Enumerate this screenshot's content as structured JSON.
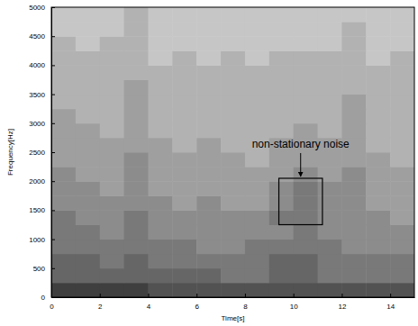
{
  "chart_data": {
    "type": "heatmap",
    "x_label": "Time[s]",
    "y_label": "Frequency[Hz]",
    "xlim": [
      0,
      15
    ],
    "ylim": [
      0,
      5000
    ],
    "xticks": [
      0,
      2,
      4,
      6,
      8,
      10,
      12,
      14
    ],
    "yticks": [
      0,
      500,
      1000,
      1500,
      2000,
      2500,
      3000,
      3500,
      4000,
      4500,
      5000
    ],
    "color_range": [
      0,
      10
    ],
    "cells": [
      [
        9,
        9,
        9,
        9,
        8,
        8,
        8,
        8,
        8,
        8,
        8,
        8,
        8,
        8,
        8
      ],
      [
        7,
        7,
        7,
        7,
        7,
        7,
        7,
        6,
        6,
        7,
        7,
        6,
        6,
        6,
        6
      ],
      [
        7,
        7,
        6,
        7,
        6,
        6,
        6,
        6,
        6,
        7,
        7,
        6,
        6,
        6,
        6
      ],
      [
        6,
        6,
        6,
        6,
        6,
        6,
        5,
        5,
        6,
        6,
        6,
        6,
        5,
        5,
        5
      ],
      [
        6,
        6,
        5,
        6,
        5,
        5,
        5,
        5,
        5,
        5,
        6,
        5,
        5,
        5,
        5
      ],
      [
        6,
        5,
        5,
        6,
        5,
        5,
        5,
        5,
        5,
        6,
        6,
        5,
        5,
        5,
        4
      ],
      [
        5,
        5,
        5,
        5,
        5,
        4,
        5,
        4,
        4,
        5,
        6,
        5,
        5,
        4,
        4
      ],
      [
        5,
        5,
        4,
        5,
        4,
        4,
        4,
        4,
        4,
        5,
        6,
        5,
        5,
        4,
        4
      ],
      [
        5,
        4,
        4,
        5,
        4,
        4,
        4,
        4,
        4,
        4,
        5,
        4,
        5,
        4,
        4
      ],
      [
        4,
        4,
        4,
        5,
        4,
        4,
        4,
        4,
        3,
        4,
        4,
        4,
        4,
        4,
        3
      ],
      [
        4,
        4,
        4,
        4,
        4,
        3,
        4,
        3,
        3,
        4,
        4,
        4,
        4,
        3,
        3
      ],
      [
        4,
        4,
        3,
        4,
        3,
        3,
        3,
        3,
        3,
        3,
        4,
        3,
        4,
        3,
        3
      ],
      [
        4,
        3,
        3,
        4,
        3,
        3,
        3,
        3,
        3,
        3,
        3,
        3,
        4,
        3,
        3
      ],
      [
        3,
        3,
        3,
        4,
        3,
        3,
        3,
        3,
        3,
        3,
        3,
        3,
        4,
        3,
        3
      ],
      [
        3,
        3,
        3,
        4,
        3,
        3,
        3,
        3,
        3,
        3,
        3,
        3,
        3,
        3,
        3
      ],
      [
        3,
        3,
        3,
        3,
        3,
        3,
        3,
        3,
        3,
        3,
        3,
        3,
        3,
        3,
        3
      ],
      [
        3,
        3,
        3,
        3,
        2,
        3,
        2,
        3,
        2,
        3,
        3,
        3,
        3,
        2,
        3
      ],
      [
        3,
        2,
        3,
        3,
        2,
        2,
        2,
        2,
        2,
        2,
        2,
        2,
        3,
        2,
        2
      ],
      [
        2,
        2,
        2,
        3,
        2,
        2,
        2,
        2,
        2,
        2,
        2,
        2,
        3,
        2,
        2
      ],
      [
        2,
        2,
        2,
        3,
        2,
        2,
        2,
        2,
        2,
        2,
        2,
        2,
        2,
        2,
        2
      ]
    ],
    "annotations": [
      {
        "text": "non-stationary noise",
        "box": {
          "x": [
            9.4,
            11.2
          ],
          "y": [
            1250,
            2050
          ]
        }
      }
    ]
  }
}
